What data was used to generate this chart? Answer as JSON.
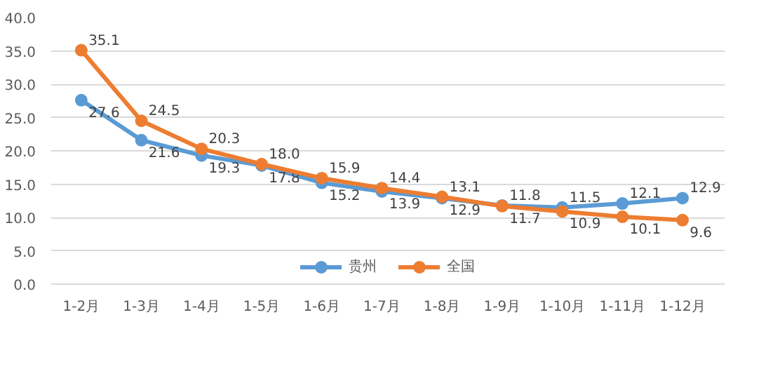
{
  "chart_data": {
    "type": "line",
    "categories": [
      "1-2月",
      "1-3月",
      "1-4月",
      "1-5月",
      "1-6月",
      "1-7月",
      "1-8月",
      "1-9月",
      "1-10月",
      "1-11月",
      "1-12月"
    ],
    "series": [
      {
        "name": "贵州",
        "color": "#5b9bd5",
        "values": [
          27.6,
          21.6,
          19.3,
          17.8,
          15.2,
          13.9,
          12.9,
          11.8,
          11.5,
          12.1,
          12.9
        ],
        "value_labels": [
          "27.6",
          "21.6",
          "19.3",
          "17.8",
          "15.2",
          "13.9",
          "12.9",
          "11.8",
          "11.5",
          "12.1",
          "12.9"
        ]
      },
      {
        "name": "全国",
        "color": "#ed7d31",
        "values": [
          35.1,
          24.5,
          20.3,
          18.0,
          15.9,
          14.4,
          13.1,
          11.7,
          10.9,
          10.1,
          9.6
        ],
        "value_labels": [
          "35.1",
          "24.5",
          "20.3",
          "18.0",
          "15.9",
          "14.4",
          "13.1",
          "11.7",
          "10.9",
          "10.1",
          "9.6"
        ]
      }
    ],
    "ylim": [
      0,
      40
    ],
    "yticks": [
      {
        "value": 0,
        "label": "0.0"
      },
      {
        "value": 5,
        "label": "5.0"
      },
      {
        "value": 10,
        "label": "10.0"
      },
      {
        "value": 15,
        "label": "15.0"
      },
      {
        "value": 20,
        "label": "20.0"
      },
      {
        "value": 25,
        "label": "25.0"
      },
      {
        "value": 30,
        "label": "30.0"
      },
      {
        "value": 35,
        "label": "35.0"
      },
      {
        "value": 40,
        "label": "40.0"
      }
    ],
    "grid": "y",
    "legend": "bottom",
    "marker": "circle",
    "line_style": "solid"
  }
}
